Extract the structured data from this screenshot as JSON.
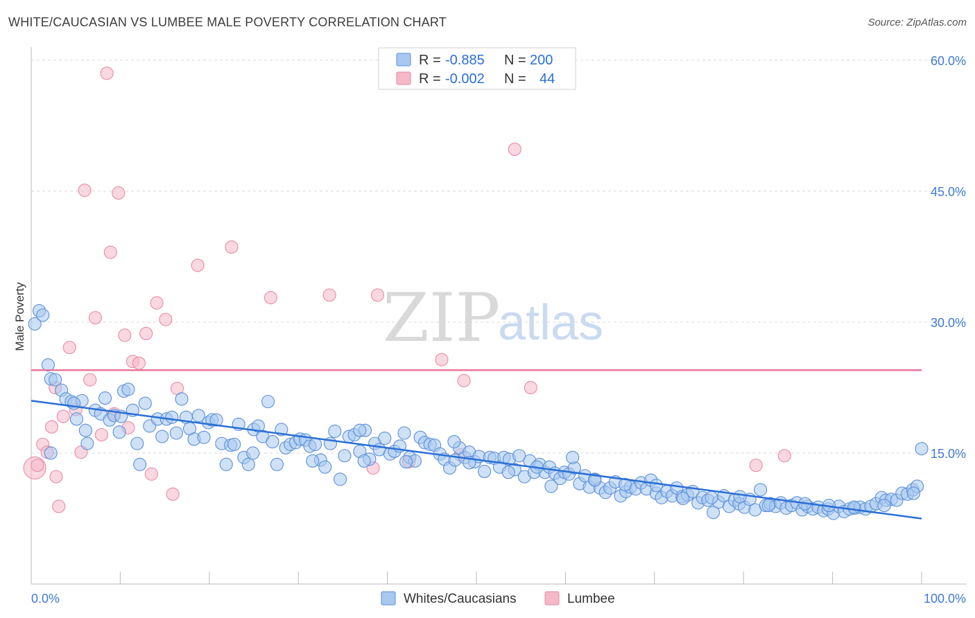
{
  "header": {
    "title": "WHITE/CAUCASIAN VS LUMBEE MALE POVERTY CORRELATION CHART",
    "source": "Source: ZipAtlas.com"
  },
  "watermark": {
    "zip": "ZIP",
    "atlas": "atlas"
  },
  "colors": {
    "blue_fill": "#a8c8f0",
    "blue_stroke": "#5a8fd8",
    "blue_line": "#2a6fd6",
    "pink_fill": "#f5b8c8",
    "pink_stroke": "#e88aa5",
    "pink_line": "#e8769a",
    "grid": "#d8d8d8",
    "axis": "#bbbbbb"
  },
  "legend": {
    "rows": [
      {
        "r_label": "R =",
        "r_value": "-0.885",
        "n_label": "N =",
        "n_value": "200"
      },
      {
        "r_label": "R =",
        "r_value": "-0.002",
        "n_label": "N =",
        "n_value": "44"
      }
    ]
  },
  "bottom_legend": [
    "Whites/Caucasians",
    "Lumbee"
  ],
  "chart_data": {
    "type": "scatter",
    "title": "WHITE/CAUCASIAN VS LUMBEE MALE POVERTY CORRELATION CHART",
    "xlabel": "",
    "ylabel": "Male Poverty",
    "xlim": [
      0,
      100
    ],
    "ylim": [
      0,
      61.5
    ],
    "x_tick_labels": [
      "0.0%",
      "100.0%"
    ],
    "y_ticks": [
      15,
      30,
      45,
      60
    ],
    "y_tick_labels": [
      "15.0%",
      "30.0%",
      "45.0%",
      "60.0%"
    ],
    "grid": true,
    "legend_position": "top-center",
    "series": [
      {
        "name": "Whites/Caucasians",
        "r": -0.885,
        "n": 200,
        "trend": {
          "x": [
            0,
            100
          ],
          "y": [
            21.0,
            7.5
          ]
        },
        "points": [
          [
            0.4,
            29.8
          ],
          [
            0.9,
            31.3
          ],
          [
            1.3,
            30.8
          ],
          [
            1.9,
            25.1
          ],
          [
            2.2,
            23.5
          ],
          [
            2.7,
            23.4
          ],
          [
            3.4,
            22.2
          ],
          [
            3.9,
            21.2
          ],
          [
            4.5,
            20.9
          ],
          [
            5.1,
            18.9
          ],
          [
            5.7,
            21.0
          ],
          [
            6.3,
            16.1
          ],
          [
            7.2,
            19.9
          ],
          [
            7.8,
            19.5
          ],
          [
            8.3,
            21.3
          ],
          [
            8.8,
            18.8
          ],
          [
            9.3,
            19.3
          ],
          [
            9.9,
            17.4
          ],
          [
            10.4,
            22.1
          ],
          [
            10.9,
            22.3
          ],
          [
            11.4,
            19.9
          ],
          [
            11.9,
            16.1
          ],
          [
            12.8,
            20.7
          ],
          [
            13.3,
            18.1
          ],
          [
            14.2,
            18.9
          ],
          [
            14.7,
            16.9
          ],
          [
            15.2,
            18.9
          ],
          [
            15.8,
            19.1
          ],
          [
            16.3,
            17.3
          ],
          [
            16.9,
            21.2
          ],
          [
            17.4,
            19.1
          ],
          [
            17.8,
            17.8
          ],
          [
            18.3,
            16.6
          ],
          [
            18.8,
            19.3
          ],
          [
            19.4,
            16.8
          ],
          [
            19.9,
            18.5
          ],
          [
            20.3,
            18.8
          ],
          [
            20.8,
            18.8
          ],
          [
            21.4,
            16.1
          ],
          [
            21.9,
            13.7
          ],
          [
            22.4,
            15.9
          ],
          [
            22.8,
            16.0
          ],
          [
            23.3,
            18.3
          ],
          [
            23.9,
            14.5
          ],
          [
            24.4,
            13.7
          ],
          [
            25.0,
            17.7
          ],
          [
            25.5,
            18.1
          ],
          [
            26.0,
            16.9
          ],
          [
            26.6,
            20.9
          ],
          [
            27.1,
            16.3
          ],
          [
            27.6,
            13.7
          ],
          [
            28.1,
            17.7
          ],
          [
            28.6,
            15.6
          ],
          [
            29.1,
            16.0
          ],
          [
            29.7,
            16.2
          ],
          [
            30.2,
            16.6
          ],
          [
            30.8,
            16.5
          ],
          [
            31.3,
            15.8
          ],
          [
            31.9,
            16.0
          ],
          [
            32.5,
            14.2
          ],
          [
            33.0,
            13.4
          ],
          [
            33.6,
            16.1
          ],
          [
            34.1,
            17.5
          ],
          [
            34.7,
            12.0
          ],
          [
            35.2,
            14.7
          ],
          [
            35.7,
            16.9
          ],
          [
            36.3,
            17.1
          ],
          [
            36.9,
            15.2
          ],
          [
            37.5,
            17.6
          ],
          [
            38.0,
            14.3
          ],
          [
            38.6,
            16.1
          ],
          [
            39.1,
            15.4
          ],
          [
            39.7,
            16.7
          ],
          [
            40.3,
            14.9
          ],
          [
            40.8,
            15.2
          ],
          [
            41.4,
            15.8
          ],
          [
            41.9,
            17.3
          ],
          [
            42.5,
            14.5
          ],
          [
            43.1,
            14.1
          ],
          [
            43.7,
            16.8
          ],
          [
            44.2,
            16.2
          ],
          [
            44.8,
            16.0
          ],
          [
            45.3,
            15.9
          ],
          [
            45.9,
            14.9
          ],
          [
            46.4,
            14.3
          ],
          [
            47.0,
            13.3
          ],
          [
            47.6,
            14.2
          ],
          [
            48.1,
            15.6
          ],
          [
            48.7,
            14.5
          ],
          [
            49.2,
            15.1
          ],
          [
            49.8,
            14.0
          ],
          [
            50.3,
            14.6
          ],
          [
            50.9,
            12.9
          ],
          [
            51.5,
            14.5
          ],
          [
            52.0,
            14.4
          ],
          [
            52.6,
            13.4
          ],
          [
            53.1,
            14.5
          ],
          [
            53.7,
            14.3
          ],
          [
            54.3,
            13.1
          ],
          [
            54.8,
            14.7
          ],
          [
            55.4,
            12.3
          ],
          [
            56.0,
            14.1
          ],
          [
            56.5,
            12.8
          ],
          [
            57.1,
            13.7
          ],
          [
            57.7,
            12.8
          ],
          [
            58.2,
            13.4
          ],
          [
            58.8,
            12.7
          ],
          [
            59.4,
            12.1
          ],
          [
            59.9,
            12.8
          ],
          [
            60.4,
            12.6
          ],
          [
            61.0,
            13.3
          ],
          [
            61.6,
            11.5
          ],
          [
            62.2,
            12.4
          ],
          [
            62.7,
            11.1
          ],
          [
            63.3,
            12.0
          ],
          [
            63.9,
            11.0
          ],
          [
            64.5,
            10.5
          ],
          [
            65.0,
            11.0
          ],
          [
            65.6,
            11.7
          ],
          [
            66.2,
            10.1
          ],
          [
            66.8,
            10.6
          ],
          [
            67.3,
            11.1
          ],
          [
            67.9,
            10.9
          ],
          [
            68.5,
            11.6
          ],
          [
            69.1,
            10.9
          ],
          [
            69.6,
            11.9
          ],
          [
            70.2,
            10.4
          ],
          [
            70.8,
            9.9
          ],
          [
            71.4,
            10.6
          ],
          [
            72.0,
            10.1
          ],
          [
            72.5,
            11.0
          ],
          [
            73.1,
            10.0
          ],
          [
            73.7,
            10.2
          ],
          [
            74.3,
            10.6
          ],
          [
            74.9,
            9.3
          ],
          [
            75.4,
            9.9
          ],
          [
            76.0,
            9.6
          ],
          [
            76.6,
            8.2
          ],
          [
            77.2,
            9.4
          ],
          [
            77.8,
            10.1
          ],
          [
            78.4,
            8.9
          ],
          [
            79.0,
            9.6
          ],
          [
            79.5,
            9.2
          ],
          [
            80.1,
            8.8
          ],
          [
            80.7,
            9.7
          ],
          [
            81.3,
            8.5
          ],
          [
            81.9,
            10.8
          ],
          [
            82.5,
            9.0
          ],
          [
            83.0,
            9.2
          ],
          [
            83.6,
            8.9
          ],
          [
            84.2,
            9.3
          ],
          [
            84.8,
            8.7
          ],
          [
            85.4,
            9.0
          ],
          [
            86.0,
            9.3
          ],
          [
            86.6,
            8.5
          ],
          [
            87.2,
            8.9
          ],
          [
            87.8,
            8.6
          ],
          [
            88.4,
            8.8
          ],
          [
            89.0,
            8.4
          ],
          [
            89.5,
            8.6
          ],
          [
            90.1,
            8.1
          ],
          [
            90.7,
            8.9
          ],
          [
            91.3,
            8.3
          ],
          [
            91.9,
            8.6
          ],
          [
            92.5,
            8.7
          ],
          [
            93.1,
            8.8
          ],
          [
            93.7,
            8.6
          ],
          [
            94.3,
            8.9
          ],
          [
            94.9,
            9.2
          ],
          [
            95.5,
            9.9
          ],
          [
            96.0,
            9.6
          ],
          [
            96.6,
            9.7
          ],
          [
            97.2,
            9.6
          ],
          [
            97.8,
            10.4
          ],
          [
            98.4,
            10.3
          ],
          [
            99.0,
            10.8
          ],
          [
            99.5,
            11.2
          ],
          [
            100.0,
            15.5
          ],
          [
            2.2,
            15.0
          ],
          [
            4.8,
            20.7
          ],
          [
            6.1,
            17.6
          ],
          [
            12.2,
            13.7
          ],
          [
            24.9,
            15.0
          ],
          [
            31.6,
            14.1
          ],
          [
            37.4,
            14.1
          ],
          [
            42.1,
            14.0
          ],
          [
            47.5,
            16.3
          ],
          [
            49.2,
            13.9
          ],
          [
            53.6,
            12.8
          ],
          [
            56.8,
            13.4
          ],
          [
            58.4,
            11.2
          ],
          [
            60.8,
            14.5
          ],
          [
            63.3,
            11.9
          ],
          [
            66.7,
            11.4
          ],
          [
            70.2,
            11.3
          ],
          [
            73.2,
            9.8
          ],
          [
            76.4,
            9.9
          ],
          [
            79.6,
            10.0
          ],
          [
            82.8,
            9.0
          ],
          [
            86.9,
            9.2
          ],
          [
            89.6,
            9.0
          ],
          [
            92.4,
            8.8
          ],
          [
            95.8,
            9.0
          ],
          [
            99.1,
            10.4
          ],
          [
            36.9,
            17.6
          ],
          [
            10.1,
            19.2
          ]
        ]
      },
      {
        "name": "Lumbee",
        "r": -0.002,
        "n": 44,
        "trend": {
          "x": [
            0,
            100
          ],
          "y": [
            24.5,
            24.5
          ]
        },
        "points": [
          [
            0.4,
            13.3
          ],
          [
            0.7,
            13.6
          ],
          [
            1.3,
            16.0
          ],
          [
            1.8,
            15.1
          ],
          [
            2.3,
            18.0
          ],
          [
            2.7,
            22.5
          ],
          [
            2.8,
            12.3
          ],
          [
            3.1,
            8.9
          ],
          [
            3.6,
            19.2
          ],
          [
            4.3,
            27.1
          ],
          [
            5.0,
            20.0
          ],
          [
            5.6,
            15.1
          ],
          [
            6.0,
            45.1
          ],
          [
            6.6,
            23.4
          ],
          [
            7.2,
            30.5
          ],
          [
            7.9,
            17.1
          ],
          [
            8.5,
            58.5
          ],
          [
            8.9,
            38.0
          ],
          [
            9.3,
            19.5
          ],
          [
            9.8,
            44.8
          ],
          [
            10.5,
            28.5
          ],
          [
            10.9,
            17.9
          ],
          [
            11.4,
            25.5
          ],
          [
            12.1,
            25.3
          ],
          [
            12.9,
            28.7
          ],
          [
            13.5,
            12.6
          ],
          [
            14.1,
            32.2
          ],
          [
            15.1,
            30.3
          ],
          [
            15.9,
            10.3
          ],
          [
            16.4,
            22.4
          ],
          [
            18.7,
            36.5
          ],
          [
            22.5,
            38.6
          ],
          [
            26.9,
            32.8
          ],
          [
            33.5,
            33.1
          ],
          [
            38.4,
            13.3
          ],
          [
            38.9,
            33.1
          ],
          [
            42.4,
            14.0
          ],
          [
            46.1,
            25.7
          ],
          [
            48.2,
            14.8
          ],
          [
            48.6,
            23.3
          ],
          [
            54.3,
            49.8
          ],
          [
            56.1,
            22.5
          ],
          [
            81.4,
            13.6
          ],
          [
            84.6,
            14.7
          ]
        ]
      }
    ]
  }
}
